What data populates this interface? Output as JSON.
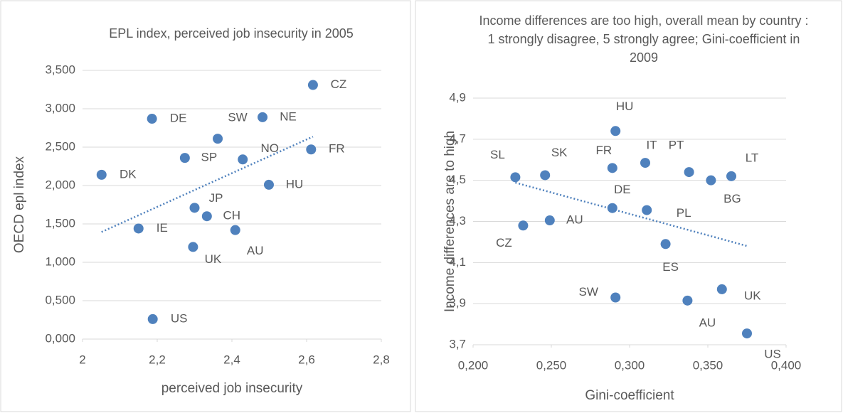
{
  "chart_data": [
    {
      "type": "scatter",
      "title": "EPL index, perceived job insecurity in 2005",
      "x_label": "perceived job insecurity",
      "y_label": "OECD epl index",
      "labels": [
        "DK",
        "DE",
        "SW",
        "NE",
        "CZ",
        "SP",
        "NO",
        "FR",
        "HU",
        "JP",
        "CH",
        "IE",
        "AU",
        "UK",
        "US"
      ],
      "x": [
        2.051,
        2.186,
        2.362,
        2.482,
        2.617,
        2.274,
        2.429,
        2.612,
        2.499,
        2.3,
        2.333,
        2.15,
        2.409,
        2.296,
        2.188
      ],
      "values": [
        2.14,
        2.87,
        2.61,
        2.89,
        3.31,
        2.36,
        2.34,
        2.47,
        2.01,
        1.71,
        1.6,
        1.44,
        1.42,
        1.2,
        0.26
      ],
      "color": "#4f81bd",
      "trendline": true,
      "grid": true,
      "xlim": [
        2,
        2.8
      ],
      "xticks": [
        2,
        {
          "value": 2.2,
          "label": "2,2"
        },
        {
          "value": 2.4,
          "label": "2,4"
        },
        {
          "value": 2.6,
          "label": "2,6"
        },
        {
          "value": 2.8,
          "label": "2,8"
        }
      ],
      "ylim": [
        0,
        3.5
      ],
      "yticks": [
        {
          "value": 0,
          "label": "0,000"
        },
        {
          "value": 0.5,
          "label": "0,500"
        },
        {
          "value": 1,
          "label": "1,000"
        },
        {
          "value": 1.5,
          "label": "1,500"
        },
        {
          "value": 2,
          "label": "2,000"
        },
        {
          "value": 2.5,
          "label": "2,500"
        },
        {
          "value": 3,
          "label": "3,000"
        },
        {
          "value": 3.5,
          "label": "3,500"
        }
      ]
    },
    {
      "type": "scatter",
      "title": "Income differences are too high, overall mean by country : 1 strongly disagree, 5 strongly agree; Gini-coefficient in 2009",
      "x_label": "Gini-coefficient",
      "y_label": "Income differences are to high",
      "labels": [
        "SL",
        "SK",
        "CZ",
        "AU",
        "FR",
        "HU",
        "DE",
        "IT",
        "PL",
        "ES",
        "PT",
        "BG",
        "LT",
        "SW",
        "AU",
        "UK",
        "US"
      ],
      "x": [
        0.227,
        0.246,
        0.232,
        0.249,
        0.289,
        0.291,
        0.289,
        0.31,
        0.311,
        0.323,
        0.338,
        0.352,
        0.365,
        0.291,
        0.337,
        0.359,
        0.375
      ],
      "values": [
        4.515,
        4.525,
        4.28,
        4.305,
        4.56,
        4.74,
        4.365,
        4.585,
        4.355,
        4.19,
        4.54,
        4.5,
        4.52,
        3.93,
        3.915,
        3.97,
        3.755
      ],
      "color": "#4f81bd",
      "trendline": true,
      "grid": true,
      "xlim": [
        0.2,
        0.4
      ],
      "xticks": [
        {
          "value": 0.2,
          "label": "0,200"
        },
        {
          "value": 0.25,
          "label": "0,250"
        },
        {
          "value": 0.3,
          "label": "0,300"
        },
        {
          "value": 0.35,
          "label": "0,350"
        },
        {
          "value": 0.4,
          "label": "0,400"
        }
      ],
      "ylim": [
        3.7,
        4.9
      ],
      "yticks": [
        {
          "value": 3.7,
          "label": "3,7"
        },
        {
          "value": 3.9,
          "label": "3,9"
        },
        {
          "value": 4.1,
          "label": "4,1"
        },
        {
          "value": 4.3,
          "label": "4,3"
        },
        {
          "value": 4.5,
          "label": "4,5"
        },
        {
          "value": 4.7,
          "label": "4,7"
        },
        {
          "value": 4.9,
          "label": "4,9"
        }
      ]
    }
  ]
}
